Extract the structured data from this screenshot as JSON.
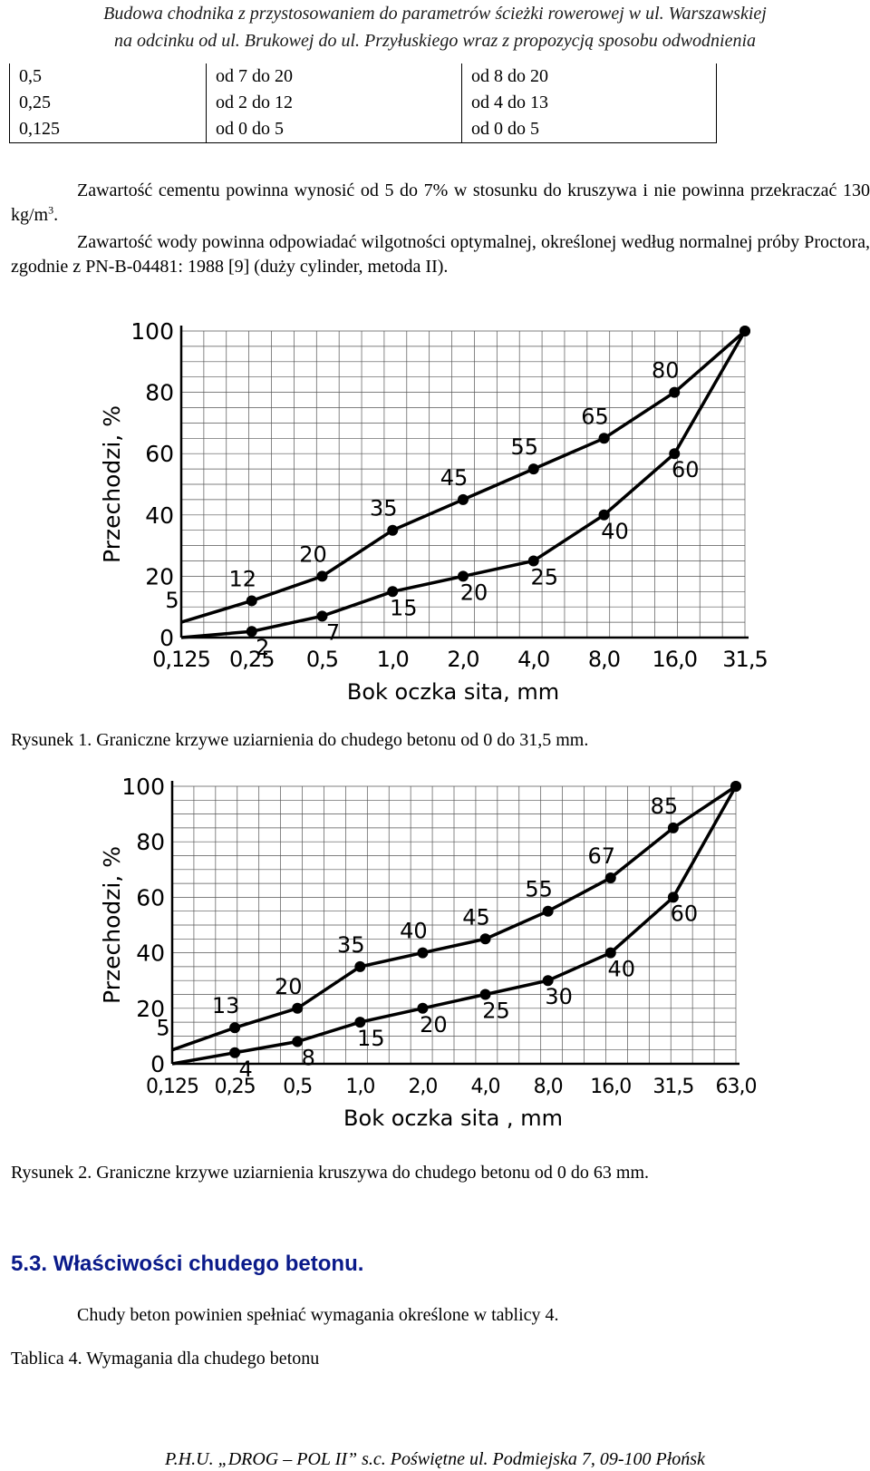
{
  "header": {
    "line1": "Budowa chodnika z  przystosowaniem do parametrów ścieżki rowerowej w ul. Warszawskiej",
    "line2": "na odcinku od ul. Brukowej do ul. Przyłuskiego wraz z propozycją sposobu odwodnienia"
  },
  "table": {
    "rows": [
      [
        "0,5",
        "od 7 do 20",
        "od 8 do 20"
      ],
      [
        "0,25",
        "od 2 do 12",
        "od 4 do 13"
      ],
      [
        "0,125",
        "od 0 do 5",
        "od 0 do 5"
      ]
    ]
  },
  "paragraphs": {
    "cement_main": "Zawartość cementu powinna wynosić od 5 do 7% w stosunku do kruszywa i nie powinna przekraczać 130 kg/m",
    "cement_sup": "3",
    "cement_end": ".",
    "water": "Zawartość wody powinna odpowiadać wilgotności optymalnej, określonej według normalnej próby Proctora, zgodnie z PN-B-04481: 1988 [9] (duży cylinder, metoda II)."
  },
  "chart_data": [
    {
      "type": "line",
      "ylabel": "Przechodzi, %",
      "xlabel": "Bok oczka sita, mm",
      "categories": [
        "0,125",
        "0,25",
        "0,5",
        "1,0",
        "2,0",
        "4,0",
        "8,0",
        "16,0",
        "31,5"
      ],
      "y_ticks": [
        "0",
        "20",
        "40",
        "60",
        "80",
        "100"
      ],
      "ylim": [
        0,
        100
      ],
      "grid": true,
      "series": [
        {
          "values": [
            5,
            12,
            20,
            35,
            45,
            55,
            65,
            80,
            100
          ],
          "labels": [
            "5",
            "12",
            "20",
            "35",
            "45",
            "55",
            "65",
            "80",
            ""
          ]
        },
        {
          "values": [
            0,
            2,
            7,
            15,
            20,
            25,
            40,
            60,
            100
          ],
          "labels": [
            "",
            "2",
            "7",
            "15",
            "20",
            "25",
            "40",
            "60",
            ""
          ]
        }
      ]
    },
    {
      "type": "line",
      "ylabel": "Przechodzi, %",
      "xlabel": "Bok oczka sita , mm",
      "categories": [
        "0,125",
        "0,25",
        "0,5",
        "1,0",
        "2,0",
        "4,0",
        "8,0",
        "16,0",
        "31,5",
        "63,0"
      ],
      "y_ticks": [
        "0",
        "20",
        "40",
        "60",
        "80",
        "100"
      ],
      "ylim": [
        0,
        100
      ],
      "grid": true,
      "series": [
        {
          "values": [
            5,
            13,
            20,
            35,
            40,
            45,
            55,
            67,
            85,
            100
          ],
          "labels": [
            "5",
            "13",
            "20",
            "35",
            "40",
            "45",
            "55",
            "67",
            "85",
            ""
          ]
        },
        {
          "values": [
            0,
            4,
            8,
            15,
            20,
            25,
            30,
            40,
            60,
            100
          ],
          "labels": [
            "",
            "4",
            "8",
            "15",
            "20",
            "25",
            "30",
            "40",
            "60",
            ""
          ]
        }
      ]
    }
  ],
  "captions": {
    "fig1": "Rysunek 1. Graniczne krzywe uziarnienia do chudego betonu od 0 do 31,5 mm.",
    "fig2": "Rysunek 2. Graniczne krzywe uziarnienia kruszywa do chudego betonu od 0 do 63 mm."
  },
  "section": {
    "heading": "5.3. Właściwości chudego betonu.",
    "text": "Chudy beton powinien spełniać wymagania określone w tablicy 4.",
    "table_title": "Tablica 4. Wymagania dla chudego betonu"
  },
  "footer": "P.H.U. „DROG – POL II” s.c. Poświętne ul. Podmiejska 7, 09-100 Płońsk"
}
